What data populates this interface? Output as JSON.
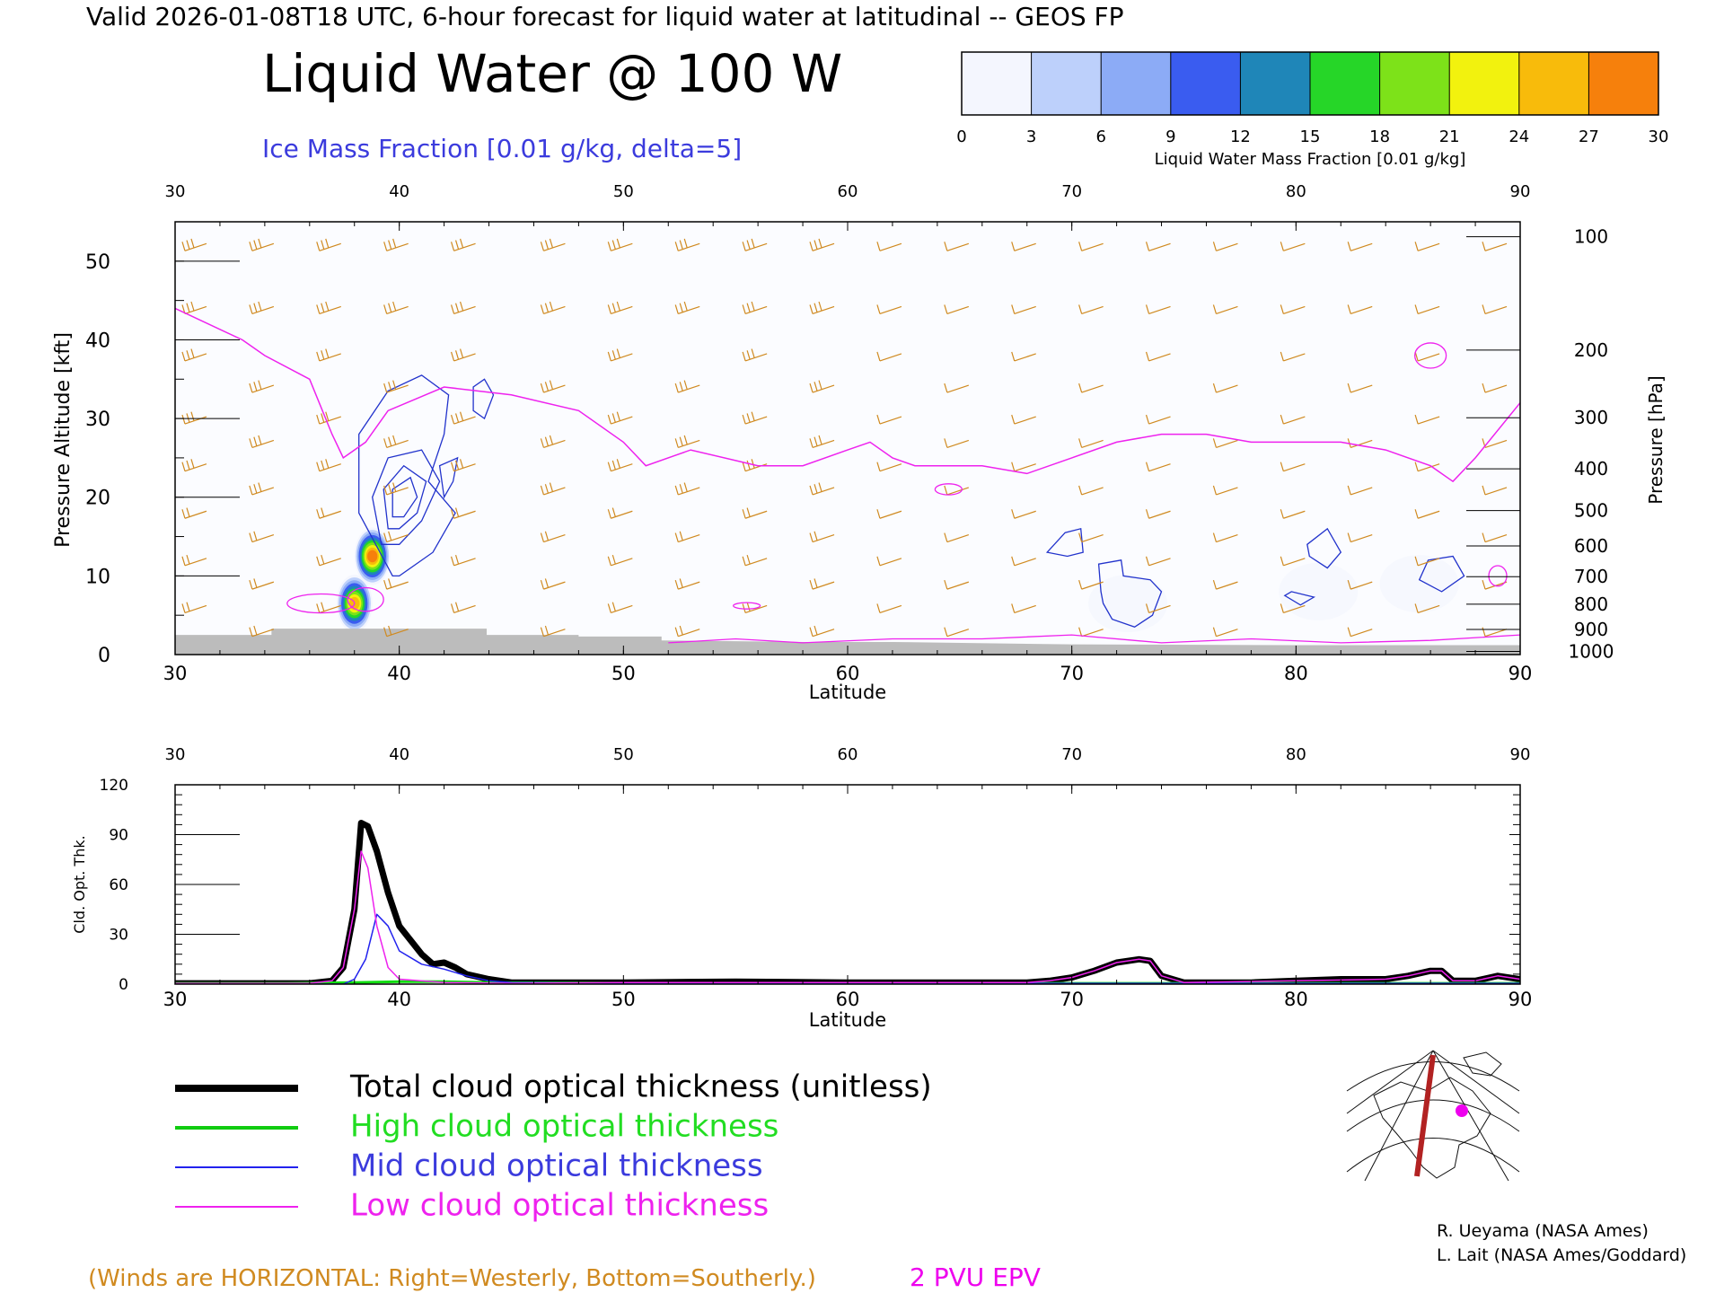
{
  "header": {
    "valid_line": "Valid 2026-01-08T18 UTC, 6-hour forecast for liquid water at latitudinal -- GEOS FP",
    "title": "Liquid Water @ 100 W",
    "subtitle": "Ice Mass Fraction [0.01 g/kg, delta=5]",
    "subtitle_color": "#3b3bdd"
  },
  "colorbar": {
    "ticks": [
      "0",
      "3",
      "6",
      "9",
      "12",
      "15",
      "18",
      "21",
      "24",
      "27",
      "30"
    ],
    "label": "Liquid Water Mass Fraction [0.01 g/kg]",
    "colors": [
      "#f4f6fe",
      "#bdd0fb",
      "#8cabf6",
      "#3a5cf0",
      "#1f86b8",
      "#26d628",
      "#7de219",
      "#f2f20e",
      "#f8bb0b",
      "#f6800c"
    ]
  },
  "chart_data": [
    {
      "type": "contour",
      "xlabel": "Latitude",
      "ylabel": "Pressure Altitude [kft]",
      "y2label": "Pressure [hPa]",
      "xlim": [
        30,
        90
      ],
      "ylim": [
        0,
        55
      ],
      "x_ticks": [
        "30",
        "40",
        "50",
        "60",
        "70",
        "80",
        "90"
      ],
      "y_ticks": [
        "0",
        "10",
        "20",
        "30",
        "40",
        "50"
      ],
      "pressure_ticks": [
        "100",
        "200",
        "300",
        "400",
        "500",
        "600",
        "700",
        "800",
        "900",
        "1000"
      ],
      "pressure_tick_kft": [
        53.1,
        38.7,
        30.1,
        23.6,
        18.3,
        13.8,
        9.9,
        6.4,
        3.2,
        0.4
      ],
      "liquid_water_blobs": [
        {
          "lat": 38.8,
          "kft": 12.5,
          "peak": 30
        },
        {
          "lat": 38.0,
          "kft": 6.5,
          "peak": 27
        },
        {
          "lat": 72.5,
          "kft": 6.5,
          "peak": 4
        },
        {
          "lat": 85.5,
          "kft": 9.0,
          "peak": 2
        },
        {
          "lat": 81.0,
          "kft": 8.0,
          "peak": 2
        }
      ],
      "epv_2pvu_kft": [
        [
          30,
          44
        ],
        [
          33,
          40
        ],
        [
          34,
          38
        ],
        [
          36,
          35
        ],
        [
          37,
          28
        ],
        [
          37.5,
          25
        ],
        [
          38.5,
          27
        ],
        [
          39.5,
          31
        ],
        [
          42,
          34
        ],
        [
          45,
          33
        ],
        [
          48,
          31
        ],
        [
          50,
          27
        ],
        [
          51,
          24
        ],
        [
          53,
          26
        ],
        [
          56,
          24
        ],
        [
          58,
          24
        ],
        [
          60,
          26
        ],
        [
          61,
          27
        ],
        [
          62,
          25
        ],
        [
          63,
          24
        ],
        [
          64,
          24
        ],
        [
          66,
          24
        ],
        [
          68,
          23
        ],
        [
          70,
          25
        ],
        [
          72,
          27
        ],
        [
          74,
          28
        ],
        [
          76,
          28
        ],
        [
          78,
          27
        ],
        [
          80,
          27
        ],
        [
          82,
          27
        ],
        [
          84,
          26
        ],
        [
          86,
          24
        ],
        [
          87,
          22
        ],
        [
          88,
          25
        ],
        [
          90,
          32
        ]
      ],
      "series": [
        {
          "name": "Total cloud optical thickness (unitless)"
        }
      ]
    },
    {
      "type": "line",
      "xlabel": "Latitude",
      "ylabel": "Cld. Opt. Thk.",
      "xlim": [
        30,
        90
      ],
      "ylim": [
        0,
        120
      ],
      "x_ticks": [
        "30",
        "40",
        "50",
        "60",
        "70",
        "80",
        "90"
      ],
      "y_ticks": [
        "0",
        "30",
        "60",
        "90",
        "120"
      ],
      "series": [
        {
          "name": "Total cloud optical thickness (unitless)",
          "color": "#000000",
          "x": [
            30,
            36,
            37,
            37.5,
            38,
            38.3,
            38.6,
            39,
            39.5,
            40,
            41,
            41.5,
            42,
            42.5,
            43,
            44,
            45,
            50,
            55,
            60,
            65,
            68,
            69,
            70,
            71,
            72,
            73,
            73.5,
            74,
            75,
            78,
            80,
            82,
            84,
            85,
            86,
            86.5,
            87,
            88,
            89,
            90
          ],
          "y": [
            0.5,
            0.5,
            2,
            10,
            45,
            97,
            95,
            80,
            55,
            35,
            18,
            12,
            13,
            10,
            6,
            3,
            1,
            1,
            1.5,
            1,
            1,
            1,
            2,
            4,
            8,
            13,
            15,
            14,
            5,
            1,
            1,
            2,
            3,
            3,
            5,
            8,
            8,
            2,
            2,
            5,
            3
          ]
        },
        {
          "name": "High cloud optical thickness",
          "color": "#11dd11",
          "x": [
            30,
            35,
            38,
            40,
            42,
            44,
            50,
            60,
            70,
            80,
            90
          ],
          "y": [
            0.5,
            0.5,
            1,
            1.5,
            1.5,
            1,
            0.5,
            0.5,
            0.5,
            0.5,
            0.5
          ]
        },
        {
          "name": "Mid cloud optical thickness",
          "color": "#2222ee",
          "x": [
            30,
            37.5,
            38,
            38.5,
            39,
            39.5,
            40,
            41,
            42,
            43,
            44,
            45,
            50,
            60,
            70,
            80,
            90
          ],
          "y": [
            0,
            0,
            3,
            15,
            42,
            35,
            20,
            12,
            9,
            5,
            2,
            1,
            0.5,
            0.5,
            0.5,
            0.5,
            0.5
          ]
        },
        {
          "name": "Low cloud optical thickness",
          "color": "#ee22ee",
          "x": [
            30,
            36,
            37,
            37.5,
            38,
            38.3,
            38.6,
            39,
            39.5,
            40,
            42,
            45,
            50,
            60,
            68,
            69,
            70,
            71,
            72,
            73,
            73.5,
            74,
            75,
            80,
            84,
            85,
            86,
            86.5,
            87,
            88,
            89,
            90
          ],
          "y": [
            0.5,
            0.5,
            2,
            10,
            45,
            80,
            70,
            35,
            10,
            3,
            1,
            0.5,
            1,
            1,
            1,
            2,
            4,
            8,
            13,
            15,
            14,
            5,
            1,
            2,
            3,
            5,
            8,
            8,
            2,
            2,
            5,
            3
          ]
        }
      ]
    }
  ],
  "legend": {
    "items": [
      {
        "label": "Total cloud optical thickness (unitless)",
        "color": "#000000"
      },
      {
        "label": "High cloud optical thickness",
        "color": "#22dd22"
      },
      {
        "label": "Mid cloud optical thickness",
        "color": "#3b3bdd"
      },
      {
        "label": "Low cloud optical thickness",
        "color": "#ee22ee"
      }
    ]
  },
  "footer": {
    "winds_note": "(Winds are HORIZONTAL: Right=Westerly, Bottom=Southerly.)",
    "winds_color": "#d08a20",
    "epv_note": "2 PVU EPV",
    "epv_color": "#ee00ee",
    "credit1": "R. Ueyama (NASA Ames)",
    "credit2": "L. Lait (NASA Ames/Goddard)"
  }
}
